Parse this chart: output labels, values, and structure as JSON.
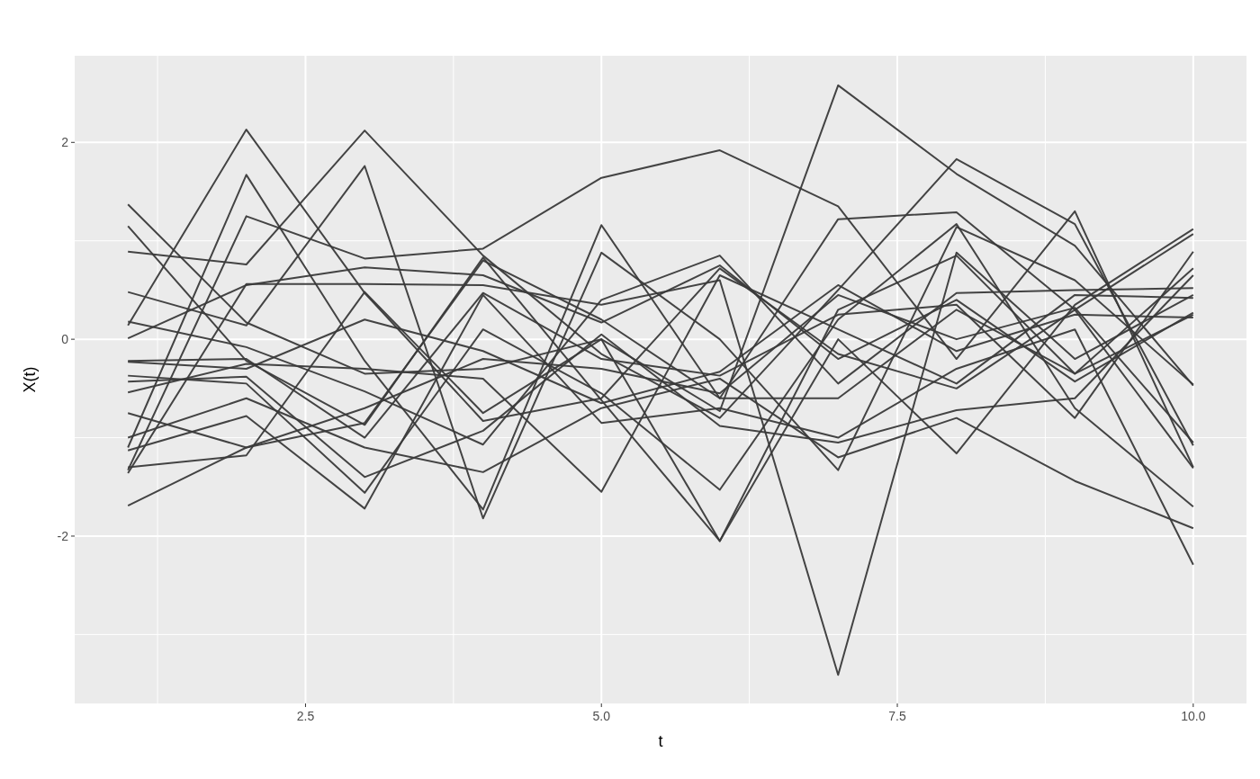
{
  "chart_data": {
    "type": "line",
    "xlabel": "t",
    "ylabel": "X(t)",
    "x": [
      1,
      2,
      3,
      4,
      5,
      6,
      7,
      8,
      9,
      10
    ],
    "xlim": [
      0.55,
      10.45
    ],
    "ylim": [
      -3.7,
      2.88
    ],
    "xticks": [
      {
        "value": 2.5,
        "label": "2.5"
      },
      {
        "value": 5,
        "label": "5.0"
      },
      {
        "value": 7.5,
        "label": "7.5"
      },
      {
        "value": 10,
        "label": "10.0"
      }
    ],
    "yticks": [
      -2,
      0,
      2
    ],
    "grid": true,
    "marker": "none",
    "line_style": "solid",
    "series": [
      {
        "color": "#3a3a3a",
        "values": [
          0.14,
          2.13,
          0.47,
          -0.83,
          -0.6,
          0.72,
          -0.15,
          -0.5,
          0.3,
          1.07
        ]
      },
      {
        "color": "#3a3a3a",
        "values": [
          -1.1,
          1.67,
          -0.22,
          -1.73,
          1.16,
          -0.6,
          1.22,
          1.29,
          0.3,
          -1.31
        ]
      },
      {
        "color": "#3a3a3a",
        "values": [
          0.89,
          0.76,
          2.12,
          0.85,
          -0.15,
          -0.8,
          0.5,
          1.83,
          1.17,
          -1.08
        ]
      },
      {
        "color": "#3a3a3a",
        "values": [
          -1.33,
          1.25,
          0.82,
          0.92,
          1.64,
          1.92,
          1.35,
          -0.2,
          1.3,
          -1.3
        ]
      },
      {
        "color": "#3a3a3a",
        "values": [
          1.37,
          0.17,
          -0.35,
          -0.3,
          0.0,
          -0.73,
          2.58,
          1.68,
          0.95,
          -0.47
        ]
      },
      {
        "color": "#3a3a3a",
        "values": [
          1.15,
          -0.22,
          -0.87,
          0.83,
          -0.62,
          -2.05,
          0.3,
          0.85,
          -0.35,
          0.72
        ]
      },
      {
        "color": "#3a3a3a",
        "values": [
          0.48,
          0.14,
          1.76,
          -1.82,
          0.88,
          0.0,
          -1.33,
          1.14,
          0.6,
          -0.46
        ]
      },
      {
        "color": "#3a3a3a",
        "values": [
          -1.36,
          0.56,
          0.56,
          0.55,
          0.35,
          0.6,
          -3.41,
          0.88,
          -0.2,
          0.45
        ]
      },
      {
        "color": "#3a3a3a",
        "values": [
          0.18,
          -0.08,
          -0.53,
          -1.07,
          0.4,
          0.85,
          -0.45,
          0.47,
          0.5,
          0.52
        ]
      },
      {
        "color": "#3a3a3a",
        "values": [
          0.01,
          0.55,
          0.73,
          0.65,
          0.17,
          0.75,
          -0.2,
          0.4,
          -0.43,
          0.27
        ]
      },
      {
        "color": "#3a3a3a",
        "values": [
          -0.22,
          -0.2,
          -1.0,
          0.47,
          -0.2,
          -0.37,
          0.25,
          0.35,
          -0.8,
          0.89
        ]
      },
      {
        "color": "#3a3a3a",
        "values": [
          -0.23,
          -0.3,
          0.2,
          -0.12,
          -0.65,
          -0.33,
          0.55,
          -0.12,
          0.25,
          0.22
        ]
      },
      {
        "color": "#3a3a3a",
        "values": [
          -0.37,
          -0.45,
          -1.56,
          0.1,
          -0.55,
          -1.53,
          0.2,
          1.17,
          -0.7,
          -1.7
        ]
      },
      {
        "color": "#3a3a3a",
        "values": [
          -0.43,
          -0.38,
          -1.4,
          -0.93,
          0.05,
          -0.88,
          -1.05,
          -0.72,
          -0.6,
          0.65
        ]
      },
      {
        "color": "#3a3a3a",
        "values": [
          -0.54,
          -0.25,
          -0.3,
          -0.4,
          -1.55,
          0.65,
          0.1,
          -0.45,
          0.45,
          0.42
        ]
      },
      {
        "color": "#3a3a3a",
        "values": [
          -0.75,
          -1.1,
          -0.7,
          -0.2,
          -0.3,
          -0.55,
          0.45,
          0.0,
          0.32,
          -1.05
        ]
      },
      {
        "color": "#3a3a3a",
        "values": [
          -1.0,
          -0.6,
          -1.1,
          -1.35,
          -0.7,
          -0.4,
          -1.2,
          -0.8,
          -1.44,
          -1.92
        ]
      },
      {
        "color": "#3a3a3a",
        "values": [
          -1.13,
          -0.78,
          -1.72,
          0.45,
          -0.85,
          -0.7,
          -1.0,
          -0.3,
          0.1,
          -2.29
        ]
      },
      {
        "color": "#3a3a3a",
        "values": [
          -1.3,
          -1.18,
          0.48,
          -0.75,
          0.0,
          -2.05,
          0.0,
          -1.16,
          0.35,
          1.12
        ]
      },
      {
        "color": "#3a3a3a",
        "values": [
          -1.69,
          -1.1,
          -0.85,
          0.8,
          0.2,
          -0.6,
          -0.6,
          0.3,
          -0.35,
          0.25
        ]
      }
    ]
  }
}
